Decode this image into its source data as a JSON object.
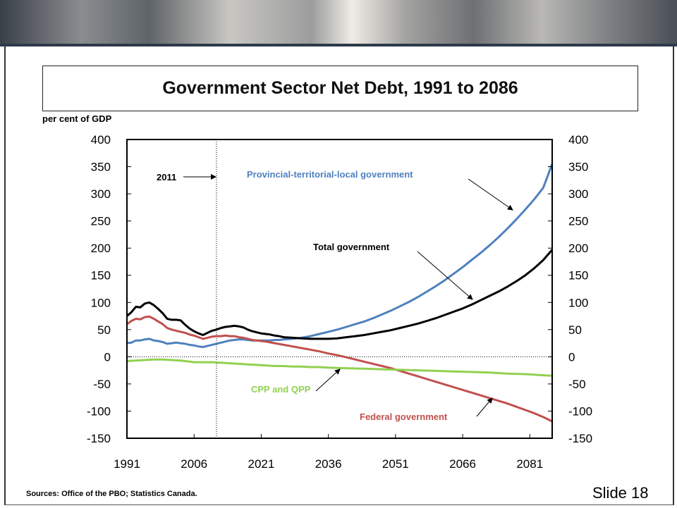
{
  "slide": {
    "title": "Government Sector Net Debt, 1991 to 2086",
    "sources": "Sources:  Office of the PBO; Statistics Canada.",
    "slide_number": "Slide 18"
  },
  "colors": {
    "provincial": "#4f81bd",
    "total": "#000000",
    "federal": "#c0504d",
    "cpp": "#92d050"
  },
  "chart_data": {
    "type": "line",
    "title": "Government Sector Net Debt, 1991 to 2086",
    "ylabel": "per cent of GDP",
    "xlabel": "",
    "xlim": [
      1991,
      2086
    ],
    "ylim": [
      -150,
      400
    ],
    "x_ticks": [
      "1991",
      "2006",
      "2021",
      "2036",
      "2051",
      "2066",
      "2081"
    ],
    "x_tick_values": [
      1991,
      2006,
      2021,
      2036,
      2051,
      2066,
      2081
    ],
    "y_ticks": [
      "400",
      "350",
      "300",
      "250",
      "200",
      "150",
      "100",
      "50",
      "0",
      "-50",
      "-100",
      "-150"
    ],
    "y_tick_values": [
      400,
      350,
      300,
      250,
      200,
      150,
      100,
      50,
      0,
      -50,
      -100,
      -150
    ],
    "reference_line": {
      "x": 2011,
      "label": "2011"
    },
    "series": [
      {
        "name": "Provincial-territorial-local government",
        "color": "#4f81bd",
        "points": [
          [
            1991,
            25
          ],
          [
            1992,
            26
          ],
          [
            1993,
            30
          ],
          [
            1994,
            30
          ],
          [
            1995,
            32
          ],
          [
            1996,
            33
          ],
          [
            1997,
            30
          ],
          [
            1998,
            29
          ],
          [
            1999,
            27
          ],
          [
            2000,
            24
          ],
          [
            2001,
            25
          ],
          [
            2002,
            26
          ],
          [
            2003,
            25
          ],
          [
            2004,
            24
          ],
          [
            2005,
            22
          ],
          [
            2006,
            21
          ],
          [
            2007,
            19
          ],
          [
            2008,
            18
          ],
          [
            2009,
            20
          ],
          [
            2010,
            22
          ],
          [
            2011,
            24
          ],
          [
            2012,
            26
          ],
          [
            2013,
            28
          ],
          [
            2014,
            30
          ],
          [
            2015,
            31
          ],
          [
            2016,
            32
          ],
          [
            2017,
            32
          ],
          [
            2018,
            31
          ],
          [
            2019,
            30
          ],
          [
            2020,
            30
          ],
          [
            2021,
            30
          ],
          [
            2022,
            30
          ],
          [
            2023,
            30
          ],
          [
            2024,
            31
          ],
          [
            2025,
            31
          ],
          [
            2026,
            32
          ],
          [
            2028,
            33
          ],
          [
            2030,
            35
          ],
          [
            2032,
            38
          ],
          [
            2034,
            42
          ],
          [
            2036,
            46
          ],
          [
            2038,
            50
          ],
          [
            2040,
            55
          ],
          [
            2042,
            60
          ],
          [
            2044,
            65
          ],
          [
            2046,
            71
          ],
          [
            2048,
            78
          ],
          [
            2050,
            85
          ],
          [
            2052,
            93
          ],
          [
            2054,
            101
          ],
          [
            2056,
            110
          ],
          [
            2058,
            120
          ],
          [
            2060,
            130
          ],
          [
            2062,
            141
          ],
          [
            2064,
            153
          ],
          [
            2066,
            165
          ],
          [
            2068,
            178
          ],
          [
            2070,
            191
          ],
          [
            2072,
            205
          ],
          [
            2074,
            220
          ],
          [
            2076,
            236
          ],
          [
            2078,
            253
          ],
          [
            2080,
            271
          ],
          [
            2082,
            290
          ],
          [
            2084,
            311
          ],
          [
            2086,
            355
          ]
        ]
      },
      {
        "name": "Total government",
        "color": "#000000",
        "points": [
          [
            1991,
            75
          ],
          [
            1992,
            82
          ],
          [
            1993,
            92
          ],
          [
            1994,
            91
          ],
          [
            1995,
            98
          ],
          [
            1996,
            100
          ],
          [
            1997,
            95
          ],
          [
            1998,
            88
          ],
          [
            1999,
            80
          ],
          [
            2000,
            70
          ],
          [
            2001,
            68
          ],
          [
            2002,
            68
          ],
          [
            2003,
            67
          ],
          [
            2004,
            59
          ],
          [
            2005,
            52
          ],
          [
            2006,
            47
          ],
          [
            2007,
            43
          ],
          [
            2008,
            40
          ],
          [
            2009,
            44
          ],
          [
            2010,
            48
          ],
          [
            2011,
            50
          ],
          [
            2012,
            53
          ],
          [
            2013,
            55
          ],
          [
            2014,
            56
          ],
          [
            2015,
            57
          ],
          [
            2016,
            56
          ],
          [
            2017,
            54
          ],
          [
            2018,
            50
          ],
          [
            2019,
            47
          ],
          [
            2020,
            45
          ],
          [
            2021,
            43
          ],
          [
            2022,
            42
          ],
          [
            2023,
            41
          ],
          [
            2024,
            39
          ],
          [
            2025,
            38
          ],
          [
            2026,
            36
          ],
          [
            2028,
            35
          ],
          [
            2030,
            34
          ],
          [
            2032,
            33
          ],
          [
            2034,
            33
          ],
          [
            2036,
            33
          ],
          [
            2038,
            34
          ],
          [
            2040,
            36
          ],
          [
            2042,
            38
          ],
          [
            2044,
            40
          ],
          [
            2046,
            43
          ],
          [
            2048,
            46
          ],
          [
            2050,
            49
          ],
          [
            2052,
            53
          ],
          [
            2054,
            57
          ],
          [
            2056,
            61
          ],
          [
            2058,
            66
          ],
          [
            2060,
            71
          ],
          [
            2062,
            77
          ],
          [
            2064,
            83
          ],
          [
            2066,
            89
          ],
          [
            2068,
            96
          ],
          [
            2070,
            104
          ],
          [
            2072,
            112
          ],
          [
            2074,
            120
          ],
          [
            2076,
            129
          ],
          [
            2078,
            139
          ],
          [
            2080,
            150
          ],
          [
            2082,
            163
          ],
          [
            2084,
            178
          ],
          [
            2086,
            197
          ]
        ]
      },
      {
        "name": "Federal government",
        "color": "#c0504d",
        "points": [
          [
            1991,
            60
          ],
          [
            1992,
            66
          ],
          [
            1993,
            70
          ],
          [
            1994,
            69
          ],
          [
            1995,
            73
          ],
          [
            1996,
            74
          ],
          [
            1997,
            70
          ],
          [
            1998,
            65
          ],
          [
            1999,
            60
          ],
          [
            2000,
            53
          ],
          [
            2001,
            50
          ],
          [
            2002,
            48
          ],
          [
            2003,
            46
          ],
          [
            2004,
            44
          ],
          [
            2005,
            41
          ],
          [
            2006,
            39
          ],
          [
            2007,
            36
          ],
          [
            2008,
            33
          ],
          [
            2009,
            35
          ],
          [
            2010,
            37
          ],
          [
            2011,
            38
          ],
          [
            2012,
            38
          ],
          [
            2013,
            39
          ],
          [
            2014,
            38
          ],
          [
            2015,
            38
          ],
          [
            2016,
            36
          ],
          [
            2017,
            35
          ],
          [
            2018,
            33
          ],
          [
            2019,
            31
          ],
          [
            2020,
            30
          ],
          [
            2021,
            29
          ],
          [
            2022,
            28
          ],
          [
            2024,
            25
          ],
          [
            2026,
            22
          ],
          [
            2028,
            19
          ],
          [
            2030,
            16
          ],
          [
            2032,
            13
          ],
          [
            2034,
            10
          ],
          [
            2036,
            6
          ],
          [
            2038,
            3
          ],
          [
            2040,
            -1
          ],
          [
            2042,
            -5
          ],
          [
            2044,
            -9
          ],
          [
            2046,
            -13
          ],
          [
            2048,
            -17
          ],
          [
            2050,
            -21
          ],
          [
            2052,
            -26
          ],
          [
            2054,
            -31
          ],
          [
            2056,
            -36
          ],
          [
            2058,
            -41
          ],
          [
            2060,
            -46
          ],
          [
            2062,
            -51
          ],
          [
            2064,
            -56
          ],
          [
            2066,
            -61
          ],
          [
            2068,
            -66
          ],
          [
            2070,
            -71
          ],
          [
            2072,
            -76
          ],
          [
            2074,
            -81
          ],
          [
            2076,
            -86
          ],
          [
            2078,
            -92
          ],
          [
            2080,
            -98
          ],
          [
            2082,
            -104
          ],
          [
            2084,
            -111
          ],
          [
            2086,
            -119
          ]
        ]
      },
      {
        "name": "CPP and QPP",
        "color": "#92d050",
        "points": [
          [
            1991,
            -8
          ],
          [
            1993,
            -7
          ],
          [
            1995,
            -6
          ],
          [
            1997,
            -5
          ],
          [
            1999,
            -5
          ],
          [
            2001,
            -6
          ],
          [
            2003,
            -7
          ],
          [
            2005,
            -9
          ],
          [
            2006,
            -10
          ],
          [
            2008,
            -10
          ],
          [
            2010,
            -10
          ],
          [
            2012,
            -11
          ],
          [
            2014,
            -12
          ],
          [
            2016,
            -13
          ],
          [
            2018,
            -14
          ],
          [
            2020,
            -15
          ],
          [
            2022,
            -16
          ],
          [
            2024,
            -17
          ],
          [
            2026,
            -17
          ],
          [
            2028,
            -18
          ],
          [
            2030,
            -18
          ],
          [
            2032,
            -19
          ],
          [
            2034,
            -19
          ],
          [
            2036,
            -20
          ],
          [
            2040,
            -21
          ],
          [
            2044,
            -22
          ],
          [
            2048,
            -23
          ],
          [
            2052,
            -24
          ],
          [
            2056,
            -25
          ],
          [
            2060,
            -26
          ],
          [
            2064,
            -27
          ],
          [
            2068,
            -28
          ],
          [
            2072,
            -29
          ],
          [
            2076,
            -31
          ],
          [
            2080,
            -32
          ],
          [
            2084,
            -34
          ],
          [
            2086,
            -35
          ]
        ]
      }
    ],
    "annotations": [
      {
        "text": "Provincial-territorial-local government",
        "color": "#4f81bd"
      },
      {
        "text": "Total government",
        "color": "#000000"
      },
      {
        "text": "CPP and QPP",
        "color": "#92d050"
      },
      {
        "text": "Federal government",
        "color": "#c0504d"
      }
    ]
  }
}
